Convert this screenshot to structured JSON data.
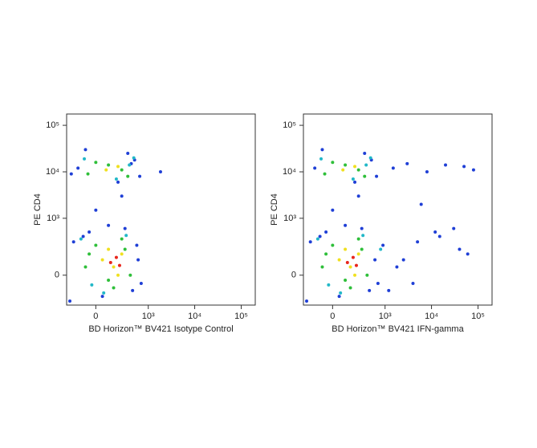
{
  "chart_data": [
    {
      "type": "scatter",
      "x_label": "BD Horizon™ BV421 Isotype Control",
      "y_label": "PE CD4",
      "xlim": [
        -300,
        200000
      ],
      "ylim": [
        -250,
        175000
      ],
      "xticks": [
        0,
        {
          "value": 1000,
          "label": "10³"
        },
        {
          "value": 10000,
          "label": "10⁴"
        },
        {
          "value": 100000,
          "label": "10⁵"
        }
      ],
      "yticks": [
        0,
        {
          "value": 1000,
          "label": "10³"
        },
        {
          "value": 10000,
          "label": "10⁴"
        },
        {
          "value": 100000,
          "label": "10⁵"
        }
      ],
      "series": [
        {
          "color": "#1f3fd6",
          "x": [
            -250,
            -100,
            50,
            300,
            600,
            -200,
            450,
            100,
            -50,
            700,
            -150,
            350,
            200,
            500,
            -80,
            250,
            0,
            650,
            1840,
            420,
            -230,
            560
          ],
          "values": [
            -200,
            400,
            -150,
            600,
            100,
            300,
            -100,
            700,
            500,
            -50,
            12000,
            25000,
            6000,
            18000,
            30000,
            3000,
            1500,
            8000,
            10000,
            15000,
            9000,
            250
          ]
        },
        {
          "color": "#22b8c8",
          "x": [
            -120,
            320,
            60,
            -30,
            480,
            180,
            380,
            -90
          ],
          "values": [
            350,
            420,
            -120,
            -60,
            20000,
            7000,
            14000,
            19000
          ]
        },
        {
          "color": "#2fbf3a",
          "x": [
            -80,
            0,
            150,
            300,
            400,
            -50,
            250,
            100,
            -60,
            100,
            250,
            350,
            0
          ],
          "values": [
            50,
            250,
            -80,
            200,
            0,
            150,
            350,
            -30,
            9000,
            14000,
            11000,
            8000,
            16000
          ]
        },
        {
          "color": "#f0e020",
          "x": [
            50,
            150,
            250,
            100,
            200,
            80,
            200
          ],
          "values": [
            100,
            50,
            150,
            200,
            0,
            11000,
            13000
          ]
        },
        {
          "color": "#e8261c",
          "x": [
            120,
            180,
            220
          ],
          "values": [
            80,
            120,
            60
          ]
        }
      ]
    },
    {
      "type": "scatter",
      "x_label": "BD Horizon™ BV421 IFN-gamma",
      "y_label": "PE CD4",
      "xlim": [
        -300,
        200000
      ],
      "ylim": [
        -250,
        175000
      ],
      "xticks": [
        0,
        {
          "value": 1000,
          "label": "10³"
        },
        {
          "value": 10000,
          "label": "10⁴"
        },
        {
          "value": 100000,
          "label": "10⁵"
        }
      ],
      "yticks": [
        0,
        {
          "value": 1000,
          "label": "10³"
        },
        {
          "value": 10000,
          "label": "10⁴"
        },
        {
          "value": 100000,
          "label": "10⁵"
        }
      ],
      "series": [
        {
          "color": "#1f3fd6",
          "x": [
            -250,
            -100,
            50,
            300,
            600,
            -200,
            450,
            100,
            -50,
            700,
            -150,
            350,
            200,
            500,
            -80,
            250,
            0,
            650,
            1500,
            3000,
            8000,
            20000,
            50000,
            80000,
            5000,
            2500,
            12000,
            40000,
            1200,
            6000,
            30000,
            900,
            15000,
            60000,
            4000,
            1800
          ],
          "values": [
            -200,
            400,
            -150,
            600,
            100,
            300,
            -100,
            700,
            500,
            -50,
            12000,
            25000,
            6000,
            18000,
            30000,
            3000,
            1500,
            8000,
            12000,
            15000,
            10000,
            14000,
            13000,
            11000,
            300,
            100,
            500,
            200,
            -100,
            2000,
            600,
            250,
            400,
            150,
            -50,
            50
          ]
        },
        {
          "color": "#22b8c8",
          "x": [
            -120,
            320,
            60,
            -30,
            480,
            180,
            380,
            -90,
            800
          ],
          "values": [
            350,
            420,
            -120,
            -60,
            20000,
            7000,
            14000,
            19000,
            200
          ]
        },
        {
          "color": "#2fbf3a",
          "x": [
            -80,
            0,
            150,
            300,
            400,
            -50,
            250,
            100,
            -60,
            100,
            250,
            350,
            0
          ],
          "values": [
            50,
            250,
            -80,
            200,
            0,
            150,
            350,
            -30,
            9000,
            14000,
            11000,
            8000,
            16000
          ]
        },
        {
          "color": "#f0e020",
          "x": [
            50,
            150,
            250,
            100,
            200,
            80,
            200
          ],
          "values": [
            100,
            50,
            150,
            200,
            0,
            11000,
            13000
          ]
        },
        {
          "color": "#e8261c",
          "x": [
            120,
            180,
            220
          ],
          "values": [
            80,
            120,
            60
          ]
        }
      ]
    }
  ]
}
